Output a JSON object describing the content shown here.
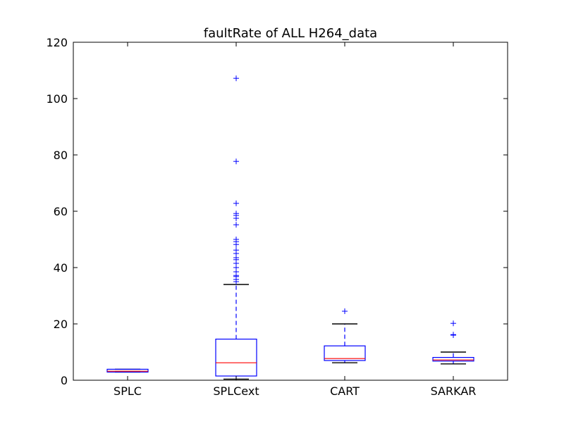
{
  "chart_data": {
    "type": "box",
    "title": "faultRate of ALL H264_data",
    "xlabel": "",
    "ylabel": "",
    "ylim": [
      0,
      120
    ],
    "yticks": [
      0,
      20,
      40,
      60,
      80,
      100,
      120
    ],
    "grid": false,
    "categories": [
      "SPLC",
      "SPLCext",
      "CART",
      "SARKAR"
    ],
    "boxes": [
      {
        "whisker_low": 2.9,
        "q1": 2.9,
        "median": 3.2,
        "q3": 3.9,
        "whisker_high": 3.9,
        "outliers": []
      },
      {
        "whisker_low": 0.4,
        "q1": 1.5,
        "median": 6.2,
        "q3": 14.6,
        "whisker_high": 34.0,
        "outliers": [
          35.0,
          35.8,
          36.8,
          37.2,
          38.5,
          40.0,
          41.5,
          42.8,
          43.5,
          45.0,
          46.2,
          48.2,
          49.2,
          50.0,
          55.2,
          57.5,
          58.5,
          59.2,
          62.8,
          77.7,
          107.2
        ]
      },
      {
        "whisker_low": 6.2,
        "q1": 7.0,
        "median": 7.7,
        "q3": 12.2,
        "whisker_high": 20.0,
        "outliers": [
          24.5
        ]
      },
      {
        "whisker_low": 5.8,
        "q1": 6.8,
        "median": 7.2,
        "q3": 8.1,
        "whisker_high": 10.0,
        "outliers": [
          16.0,
          16.2,
          20.2
        ]
      }
    ],
    "colors": {
      "box": "#0000ff",
      "median": "#ff0000",
      "cap": "#000000",
      "outlier": "#0000ff",
      "axes": "#000000"
    }
  }
}
